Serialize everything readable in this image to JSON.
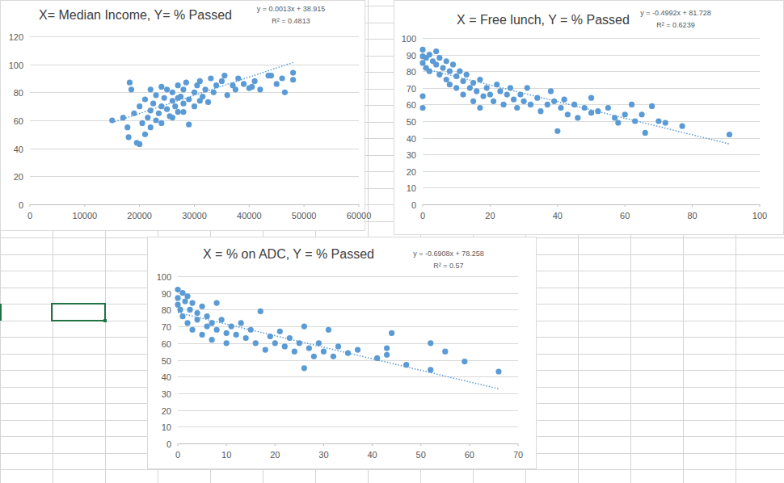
{
  "chart_data": [
    {
      "type": "scatter",
      "title": "X= Median Income, Y= % Passed",
      "color": "#5b9bd5",
      "marker": "circle",
      "grid": true,
      "xlim": [
        0,
        60000
      ],
      "ylim": [
        0,
        120
      ],
      "xticks": [
        0,
        10000,
        20000,
        30000,
        40000,
        50000,
        60000
      ],
      "yticks": [
        0,
        20,
        40,
        60,
        80,
        100,
        120
      ],
      "x": [
        15000,
        17000,
        17800,
        18000,
        18200,
        18500,
        19000,
        19500,
        20000,
        20000,
        20500,
        21000,
        21000,
        21500,
        22000,
        22000,
        22500,
        23000,
        23000,
        23500,
        24000,
        24000,
        24500,
        25000,
        25000,
        25500,
        26000,
        26000,
        26500,
        27000,
        27000,
        27500,
        28000,
        28000,
        28500,
        29000,
        29000,
        30000,
        30000,
        30500,
        31000,
        31500,
        32000,
        32500,
        33000,
        33500,
        34000,
        35000,
        35500,
        36000,
        37000,
        37500,
        38000,
        39000,
        40000,
        40500,
        41000,
        42000,
        43500,
        44000,
        45000,
        46000,
        46500,
        48000,
        48000,
        26000,
        27000,
        22000,
        24000,
        28000,
        31000
      ],
      "values": [
        60,
        62,
        55,
        48,
        87,
        82,
        65,
        44,
        43,
        70,
        58,
        50,
        75,
        62,
        67,
        55,
        72,
        60,
        78,
        65,
        70,
        58,
        76,
        68,
        82,
        63,
        74,
        80,
        70,
        85,
        66,
        77,
        72,
        82,
        87,
        57,
        75,
        80,
        70,
        85,
        88,
        77,
        82,
        73,
        90,
        80,
        85,
        88,
        92,
        78,
        85,
        82,
        90,
        86,
        83,
        84,
        88,
        82,
        92,
        92,
        86,
        90,
        80,
        89,
        94,
        62,
        76,
        82,
        84,
        66,
        74
      ],
      "trendline": {
        "slope": 0.0013,
        "intercept": 38.915,
        "r_squared": 0.4813,
        "line_style": "dotted",
        "label": "y = 0.0013x + 38.915",
        "r_squared_label": "R² = 0.4813"
      }
    },
    {
      "type": "scatter",
      "title": "X = Free lunch, Y = % Passed",
      "color": "#5b9bd5",
      "marker": "circle",
      "grid": true,
      "xlim": [
        0,
        100
      ],
      "ylim": [
        0,
        100
      ],
      "xticks": [
        0,
        20,
        40,
        60,
        80,
        100
      ],
      "yticks": [
        0,
        10,
        20,
        30,
        40,
        50,
        60,
        70,
        80,
        90,
        100
      ],
      "x": [
        0,
        0,
        0,
        0,
        0,
        1,
        1,
        2,
        2,
        3,
        4,
        4,
        5,
        5,
        6,
        7,
        7,
        8,
        8,
        9,
        10,
        10,
        11,
        12,
        12,
        13,
        14,
        15,
        15,
        16,
        17,
        17,
        18,
        19,
        20,
        21,
        22,
        23,
        24,
        25,
        26,
        27,
        28,
        29,
        30,
        31,
        32,
        34,
        35,
        37,
        38,
        39,
        40,
        41,
        42,
        43,
        45,
        46,
        48,
        50,
        50,
        52,
        55,
        57,
        58,
        60,
        62,
        63,
        65,
        66,
        68,
        70,
        72,
        77,
        91
      ],
      "values": [
        93,
        89,
        85,
        65,
        58,
        88,
        82,
        90,
        80,
        86,
        92,
        84,
        88,
        78,
        82,
        86,
        75,
        80,
        72,
        84,
        77,
        70,
        80,
        74,
        66,
        78,
        70,
        73,
        62,
        68,
        75,
        58,
        65,
        70,
        66,
        62,
        72,
        68,
        60,
        66,
        70,
        63,
        58,
        66,
        62,
        70,
        60,
        64,
        56,
        60,
        68,
        62,
        44,
        58,
        63,
        54,
        60,
        52,
        58,
        55,
        64,
        56,
        58,
        52,
        49,
        54,
        60,
        50,
        54,
        43,
        59,
        50,
        49,
        47,
        42
      ],
      "trendline": {
        "slope": -0.4992,
        "intercept": 81.728,
        "r_squared": 0.6239,
        "line_style": "dotted",
        "label": "y = -0.4992x + 81.728",
        "r_squared_label": "R² = 0.6239"
      }
    },
    {
      "type": "scatter",
      "title": "X = % on ADC,  Y = % Passed",
      "color": "#5b9bd5",
      "marker": "circle",
      "grid": true,
      "xlim": [
        0,
        70
      ],
      "ylim": [
        0,
        100
      ],
      "xticks": [
        0,
        10,
        20,
        30,
        40,
        50,
        60,
        70
      ],
      "yticks": [
        0,
        10,
        20,
        30,
        40,
        50,
        60,
        70,
        80,
        90,
        100
      ],
      "x": [
        0,
        0,
        0,
        0.5,
        1,
        1,
        1.5,
        2,
        2,
        2.5,
        3,
        3,
        4,
        4,
        5,
        5,
        6,
        6,
        7,
        7,
        8,
        8,
        9,
        10,
        10,
        11,
        12,
        13,
        14,
        15,
        16,
        17,
        18,
        19,
        20,
        21,
        22,
        23,
        24,
        25,
        26,
        26,
        27,
        28,
        29,
        30,
        31,
        32,
        33,
        35,
        37,
        41,
        43,
        43,
        44,
        47,
        52,
        52,
        55,
        59,
        66
      ],
      "values": [
        92,
        87,
        83,
        80,
        90,
        76,
        85,
        88,
        72,
        80,
        84,
        68,
        78,
        74,
        82,
        65,
        76,
        70,
        72,
        62,
        84,
        68,
        74,
        66,
        60,
        70,
        65,
        72,
        63,
        68,
        60,
        79,
        56,
        64,
        60,
        67,
        58,
        63,
        55,
        60,
        45,
        70,
        57,
        52,
        60,
        55,
        68,
        52,
        58,
        54,
        56,
        51,
        57,
        53,
        66,
        47,
        60,
        44,
        55,
        49,
        43
      ],
      "trendline": {
        "slope": -0.6908,
        "intercept": 78.258,
        "r_squared": 0.57,
        "line_style": "dotted",
        "label": "y = -0.6908x + 78.258",
        "r_squared_label": "R² = 0.57"
      }
    }
  ]
}
